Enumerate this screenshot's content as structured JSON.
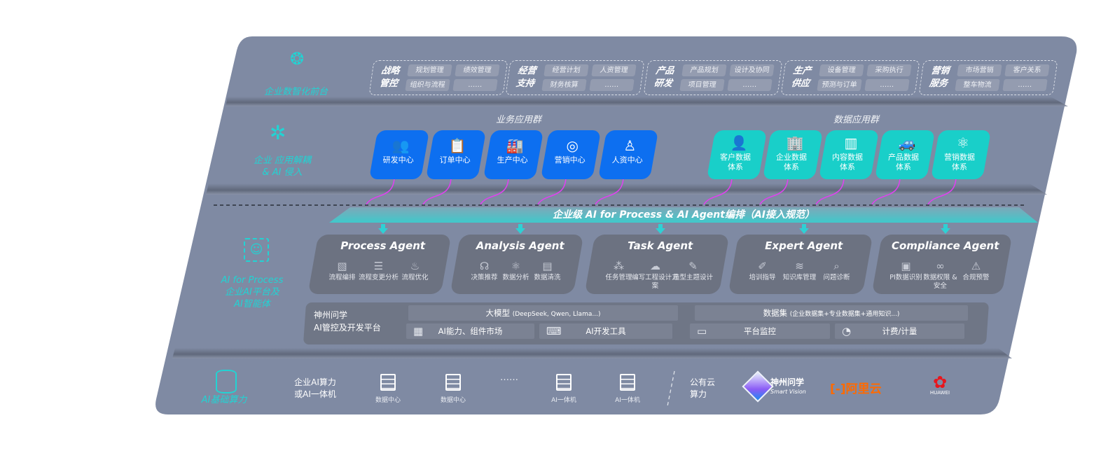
{
  "colors": {
    "panel": "#7f8aa3",
    "business_card": "#0d6ff0",
    "data_card": "#19cfc9",
    "accent_teal": "#22d3d3",
    "arrow": "#e23ff2",
    "agent_card": "#6c7281"
  },
  "layers": {
    "front": {
      "label": "企业数智化前台",
      "icon": "brain-icon"
    },
    "apps": {
      "label_line1": "企业 应用解耦",
      "label_line2": "& AI 侵入",
      "icon": "molecule-icon"
    },
    "ai": {
      "label_line1": "AI for Process",
      "label_line2": "企业AI平台及",
      "label_line3": "AI智能体",
      "icon": "face-scan-icon"
    },
    "compute": {
      "label": "AI基础算力",
      "icon": "database-icon"
    }
  },
  "front_groups": [
    {
      "title1": "战略",
      "title2": "管控",
      "items": [
        "规划管理",
        "绩效管理",
        "组织与流程",
        "……"
      ]
    },
    {
      "title1": "经营",
      "title2": "支持",
      "items": [
        "经营计划",
        "人资管理",
        "财务核算",
        "……"
      ]
    },
    {
      "title1": "产品",
      "title2": "研发",
      "items": [
        "产品规划",
        "设计及协同",
        "项目管理",
        "……"
      ]
    },
    {
      "title1": "生产",
      "title2": "供应",
      "items": [
        "设备管理",
        "采购执行",
        "预测与订单",
        "……"
      ]
    },
    {
      "title1": "营销",
      "title2": "服务",
      "items": [
        "市场营销",
        "客户关系",
        "整车物流",
        "……"
      ]
    }
  ],
  "business_apps": {
    "heading": "业务应用群",
    "cards": [
      {
        "label": "研发中心",
        "icon": "users-icon"
      },
      {
        "label": "订单中心",
        "icon": "clipboard-icon"
      },
      {
        "label": "生产中心",
        "icon": "factory-icon"
      },
      {
        "label": "营销中心",
        "icon": "target-icon"
      },
      {
        "label": "人资中心",
        "icon": "person-wave-icon"
      }
    ]
  },
  "data_apps": {
    "heading": "数据应用群",
    "cards": [
      {
        "label": "客户数据\n体系",
        "icon": "person-icon"
      },
      {
        "label": "企业数据\n体系",
        "icon": "building-icon"
      },
      {
        "label": "内容数据\n体系",
        "icon": "books-icon"
      },
      {
        "label": "产品数据\n体系",
        "icon": "car-icon"
      },
      {
        "label": "营销数据\n体系",
        "icon": "atom-icon"
      }
    ]
  },
  "banner": "企业级 AI for Process & AI Agent编排（AI接入规范）",
  "agents": [
    {
      "title": "Process Agent",
      "features": [
        {
          "label": "流程编排",
          "icon": "chart-window-icon"
        },
        {
          "label": "流程变更分析",
          "icon": "list-icon"
        },
        {
          "label": "流程优化",
          "icon": "optimize-icon"
        }
      ]
    },
    {
      "title": "Analysis Agent",
      "features": [
        {
          "label": "决策推荐",
          "icon": "head-icon"
        },
        {
          "label": "数据分析",
          "icon": "atom-icon"
        },
        {
          "label": "数据清洗",
          "icon": "data-clean-icon"
        }
      ]
    },
    {
      "title": "Task Agent",
      "features": [
        {
          "label": "任务管理",
          "icon": "network-icon"
        },
        {
          "label": "编写工程设计方案",
          "icon": "cloud-icon"
        },
        {
          "label": "造型主题设计",
          "icon": "design-icon"
        }
      ]
    },
    {
      "title": "Expert Agent",
      "features": [
        {
          "label": "培训指导",
          "icon": "training-icon"
        },
        {
          "label": "知识库管理",
          "icon": "layers-icon"
        },
        {
          "label": "问题诊断",
          "icon": "diagnosis-icon"
        }
      ]
    },
    {
      "title": "Compliance Agent",
      "features": [
        {
          "label": "PI数据识别",
          "icon": "id-card-icon"
        },
        {
          "label": "数据权限 &\n安全",
          "icon": "link-icon"
        },
        {
          "label": "合规预警",
          "icon": "alert-icon"
        }
      ]
    }
  ],
  "platform": {
    "name_line1": "神州问学",
    "name_line2": "AI管控及开发平台",
    "model_title": "大模型",
    "model_note": "(DeepSeek, Qwen, Llama...)",
    "dataset_title": "数据集",
    "dataset_note": "(企业数据集+专业数据集+通用知识...)",
    "tools": [
      {
        "label": "AI能力、组件市场",
        "icon": "market-icon"
      },
      {
        "label": "AI开发工具",
        "icon": "dev-tool-icon"
      },
      {
        "label": "平台监控",
        "icon": "monitor-icon"
      },
      {
        "label": "计费/计量",
        "icon": "gauge-icon"
      }
    ]
  },
  "compute": {
    "private_label_line1": "企业AI算力",
    "private_label_line2": "或AI一体机",
    "servers": [
      {
        "label": "数据中心",
        "icon": "server-icon"
      },
      {
        "label": "数据中心",
        "icon": "server-icon"
      },
      {
        "label": "……",
        "icon": ""
      },
      {
        "label": "AI一体机",
        "icon": "server-icon"
      },
      {
        "label": "AI一体机",
        "icon": "server-icon"
      }
    ],
    "public_label_line1": "公有云",
    "public_label_line2": "算力",
    "providers": [
      {
        "name": "神州问学",
        "sub": "Smart Vision",
        "icon": "smart-vision-logo"
      },
      {
        "name": "阿里云",
        "icon": "aliyun-logo"
      },
      {
        "name": "HUAWEI",
        "icon": "huawei-logo"
      }
    ]
  }
}
